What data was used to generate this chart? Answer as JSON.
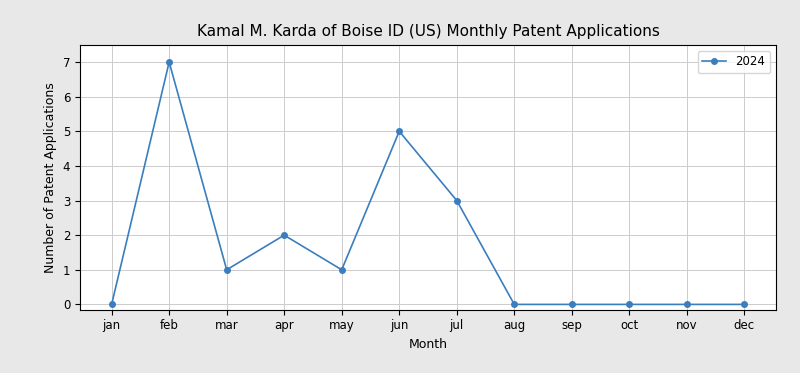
{
  "title": "Kamal M. Karda of Boise ID (US) Monthly Patent Applications",
  "xlabel": "Month",
  "ylabel": "Number of Patent Applications",
  "months": [
    "jan",
    "feb",
    "mar",
    "apr",
    "may",
    "jun",
    "jul",
    "aug",
    "sep",
    "oct",
    "nov",
    "dec"
  ],
  "values_2024": [
    0,
    7,
    1,
    2,
    1,
    5,
    3,
    0,
    0,
    0,
    0,
    0
  ],
  "line_color": "#3a7ebf",
  "marker": "o",
  "marker_size": 4,
  "legend_label": "2024",
  "ylim": [
    -0.15,
    7.5
  ],
  "title_fontsize": 11,
  "label_fontsize": 9,
  "tick_fontsize": 8.5,
  "fig_facecolor": "#e8e8e8",
  "axes_facecolor": "#ffffff",
  "grid_color": "#cccccc"
}
